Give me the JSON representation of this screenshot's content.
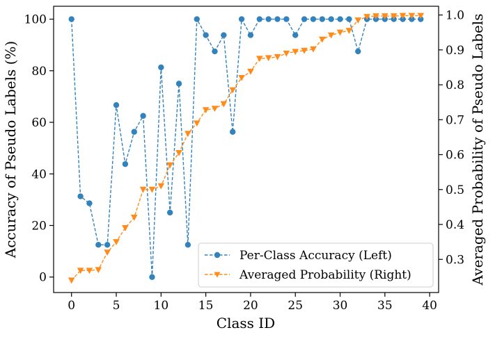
{
  "chart_data": {
    "type": "line",
    "xlabel": "Class ID",
    "ylabel_left": "Accuracy of Pseudo Labels (%)",
    "ylabel_right": "Averaged Probability of Pseudo Labels",
    "xlim": [
      -2,
      41
    ],
    "ylim_left": [
      -6,
      105
    ],
    "ylim_right": [
      0.205,
      1.025
    ],
    "x_ticks": [
      0,
      5,
      10,
      15,
      20,
      25,
      30,
      35,
      40
    ],
    "y_ticks_left": [
      0,
      20,
      40,
      60,
      80,
      100
    ],
    "y_ticks_right": [
      0.3,
      0.4,
      0.5,
      0.6,
      0.7,
      0.8,
      0.9,
      1.0
    ],
    "legend_position": "lower-right",
    "grid": false,
    "x": [
      0,
      1,
      2,
      3,
      4,
      5,
      6,
      7,
      8,
      9,
      10,
      11,
      12,
      13,
      14,
      15,
      16,
      17,
      18,
      19,
      20,
      21,
      22,
      23,
      24,
      25,
      26,
      27,
      28,
      29,
      30,
      31,
      32,
      33,
      34,
      35,
      36,
      37,
      38,
      39
    ],
    "series": [
      {
        "name": "Per-Class Accuracy (Left)",
        "axis": "left",
        "marker": "circle",
        "color": "#3182bd",
        "values": [
          100,
          31.3,
          28.6,
          12.5,
          12.5,
          66.7,
          43.8,
          56.3,
          62.5,
          0,
          81.3,
          25,
          75,
          12.5,
          100,
          93.8,
          87.5,
          93.8,
          56.3,
          100,
          93.8,
          100,
          100,
          100,
          100,
          93.8,
          100,
          100,
          100,
          100,
          100,
          100,
          87.5,
          100,
          100,
          100,
          100,
          100,
          100,
          100
        ]
      },
      {
        "name": "Averaged Probability (Right)",
        "axis": "right",
        "marker": "triangle-down",
        "color": "#ff8c1a",
        "values": [
          0.24,
          0.268,
          0.268,
          0.27,
          0.32,
          0.35,
          0.39,
          0.42,
          0.5,
          0.5,
          0.51,
          0.57,
          0.605,
          0.66,
          0.69,
          0.728,
          0.732,
          0.745,
          0.785,
          0.82,
          0.838,
          0.875,
          0.877,
          0.88,
          0.89,
          0.895,
          0.898,
          0.902,
          0.93,
          0.942,
          0.95,
          0.955,
          0.985,
          0.995,
          0.997,
          0.997,
          0.997,
          0.998,
          0.998,
          0.998
        ]
      }
    ]
  }
}
